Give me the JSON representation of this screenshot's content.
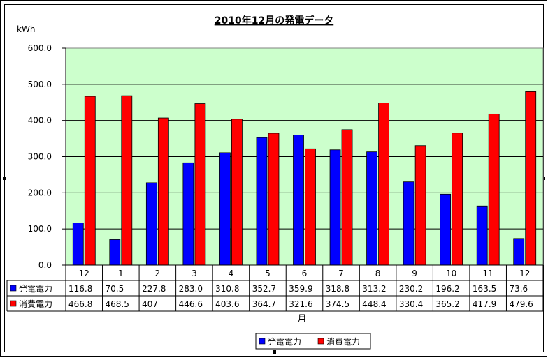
{
  "chart_data": {
    "type": "bar",
    "title": "2010年12月の発電データ",
    "ylabel": "kWh",
    "xlabel": "月",
    "ylim": [
      0,
      600
    ],
    "yticks": [
      "0.0",
      "100.0",
      "200.0",
      "300.0",
      "400.0",
      "500.0",
      "600.0"
    ],
    "categories": [
      "12",
      "1",
      "2",
      "3",
      "4",
      "5",
      "6",
      "7",
      "8",
      "9",
      "10",
      "11",
      "12"
    ],
    "series": [
      {
        "name": "発電電力",
        "color": "#0000ff",
        "values": [
          116.8,
          70.5,
          227.8,
          283.0,
          310.8,
          352.7,
          359.9,
          318.8,
          313.2,
          230.2,
          196.2,
          163.5,
          73.6
        ],
        "labels": [
          "116.8",
          "70.5",
          "227.8",
          "283.0",
          "310.8",
          "352.7",
          "359.9",
          "318.8",
          "313.2",
          "230.2",
          "196.2",
          "163.5",
          "73.6"
        ]
      },
      {
        "name": "消費電力",
        "color": "#ff0000",
        "values": [
          466.8,
          468.5,
          407,
          446.6,
          403.6,
          364.7,
          321.6,
          374.5,
          448.4,
          330.4,
          365.2,
          417.9,
          479.6
        ],
        "labels": [
          "466.8",
          "468.5",
          "407",
          "446.6",
          "403.6",
          "364.7",
          "321.6",
          "374.5",
          "448.4",
          "330.4",
          "365.2",
          "417.9",
          "479.6"
        ]
      }
    ],
    "plot_background": "#ccffcc",
    "grid": true,
    "legend_position": "bottom",
    "data_table": true
  }
}
